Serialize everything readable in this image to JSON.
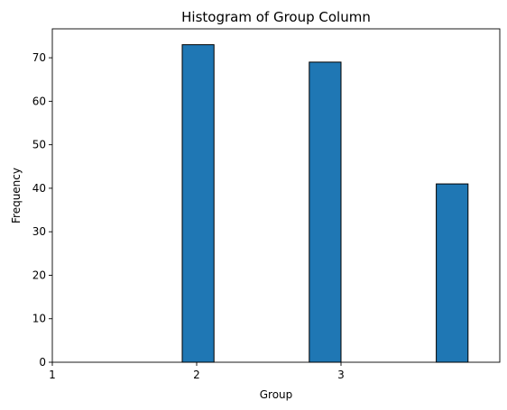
{
  "chart_data": {
    "type": "bar",
    "title": "Histogram of Group Column",
    "xlabel": "Group",
    "ylabel": "Frequency",
    "xlim": [
      1,
      4.1
    ],
    "ylim": [
      0,
      76.65
    ],
    "bins": [
      {
        "start": 1.9,
        "end": 2.12,
        "value": 73
      },
      {
        "start": 2.78,
        "end": 3.0,
        "value": 69
      },
      {
        "start": 3.66,
        "end": 3.88,
        "value": 41
      }
    ],
    "xticks": [
      {
        "value": 1,
        "label": "1"
      },
      {
        "value": 2,
        "label": "2"
      },
      {
        "value": 3,
        "label": "3"
      }
    ],
    "yticks": [
      {
        "value": 0,
        "label": "0"
      },
      {
        "value": 10,
        "label": "10"
      },
      {
        "value": 20,
        "label": "20"
      },
      {
        "value": 30,
        "label": "30"
      },
      {
        "value": 40,
        "label": "40"
      },
      {
        "value": 50,
        "label": "50"
      },
      {
        "value": 60,
        "label": "60"
      },
      {
        "value": 70,
        "label": "70"
      }
    ],
    "bar_color": "#1f77b4",
    "edge_color": "#000000",
    "grid": false,
    "legend": "none"
  }
}
